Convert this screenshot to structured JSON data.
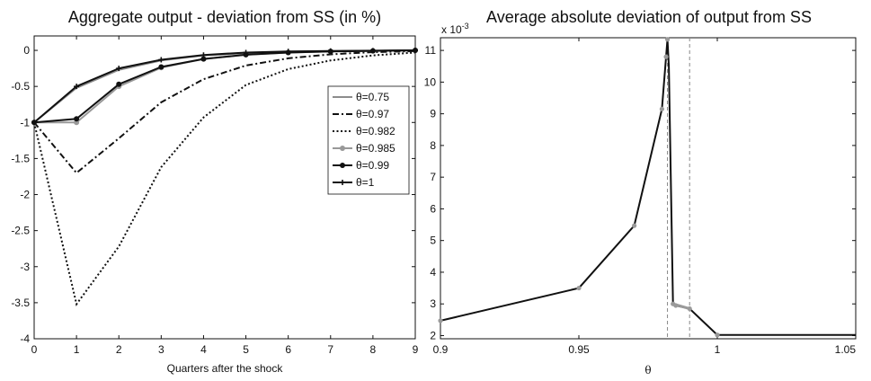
{
  "chart_data": [
    {
      "type": "line",
      "title": "Aggregate output - deviation from SS (in %)",
      "xlabel": "Quarters after the shock",
      "ylabel": "",
      "xlim": [
        0,
        9
      ],
      "ylim": [
        -4,
        0.2
      ],
      "x_ticks": [
        "0",
        "1",
        "2",
        "3",
        "4",
        "5",
        "6",
        "7",
        "8",
        "9"
      ],
      "y_ticks": [
        "0",
        "-0.5",
        "-1",
        "-1.5",
        "-2",
        "-2.5",
        "-3",
        "-3.5",
        "-4"
      ],
      "legend_position": "right",
      "x": [
        0,
        1,
        2,
        3,
        4,
        5,
        6,
        7,
        8,
        9
      ],
      "series": [
        {
          "name": "θ=0.75",
          "color": "#8c8c8c",
          "dash": "solid",
          "marker": "none",
          "values": [
            -1,
            -0.52,
            -0.27,
            -0.14,
            -0.07,
            -0.04,
            -0.02,
            -0.01,
            -0.005,
            0
          ]
        },
        {
          "name": "θ=0.97",
          "color": "#111111",
          "dash": "dashdot",
          "marker": "none",
          "values": [
            -1,
            -1.7,
            -1.22,
            -0.72,
            -0.4,
            -0.21,
            -0.11,
            -0.055,
            -0.025,
            -0.01
          ]
        },
        {
          "name": "θ=0.982",
          "color": "#111111",
          "dash": "dotted",
          "marker": "none",
          "values": [
            -1,
            -3.52,
            -2.72,
            -1.62,
            -0.93,
            -0.48,
            -0.26,
            -0.14,
            -0.07,
            -0.03
          ]
        },
        {
          "name": "θ=0.985",
          "color": "#999999",
          "dash": "solid",
          "marker": "dot",
          "values": [
            -1,
            -1.0,
            -0.5,
            -0.24,
            -0.12,
            -0.06,
            -0.03,
            -0.015,
            -0.007,
            0
          ]
        },
        {
          "name": "θ=0.99",
          "color": "#111111",
          "dash": "solid",
          "marker": "dot",
          "values": [
            -1,
            -0.95,
            -0.47,
            -0.23,
            -0.12,
            -0.06,
            -0.03,
            -0.015,
            -0.007,
            0
          ]
        },
        {
          "name": "θ=1",
          "color": "#111111",
          "dash": "solid",
          "marker": "plus",
          "values": [
            -1,
            -0.5,
            -0.25,
            -0.13,
            -0.065,
            -0.03,
            -0.015,
            -0.008,
            -0.004,
            0
          ]
        }
      ]
    },
    {
      "type": "line",
      "title": "Average absolute deviation of output from SS",
      "xlabel": "θ",
      "ylabel": "",
      "y_multiplier": "x 10",
      "y_multiplier_exp": "-3",
      "xlim": [
        0.9,
        1.05
      ],
      "ylim": [
        1.9,
        11.4
      ],
      "x_ticks": [
        "0.9",
        "0.95",
        "1",
        "1.05"
      ],
      "y_ticks": [
        "2",
        "3",
        "4",
        "5",
        "6",
        "7",
        "8",
        "9",
        "10",
        "11"
      ],
      "vlines": [
        0.982,
        0.99
      ],
      "series": [
        {
          "name": "",
          "color": "#111111",
          "x": [
            0.9,
            0.95,
            0.97,
            0.98,
            0.9815,
            0.982,
            0.9825,
            0.984,
            0.985,
            0.99,
            1.0,
            1.05
          ],
          "values": [
            2.47,
            3.5,
            5.47,
            9.15,
            10.8,
            11.35,
            10.5,
            3.0,
            2.95,
            2.85,
            2.02,
            2.02
          ],
          "markers": [
            0.9,
            0.95,
            0.97,
            0.98,
            0.9815,
            0.982,
            0.984,
            0.985,
            0.99,
            1.0
          ]
        }
      ]
    }
  ]
}
